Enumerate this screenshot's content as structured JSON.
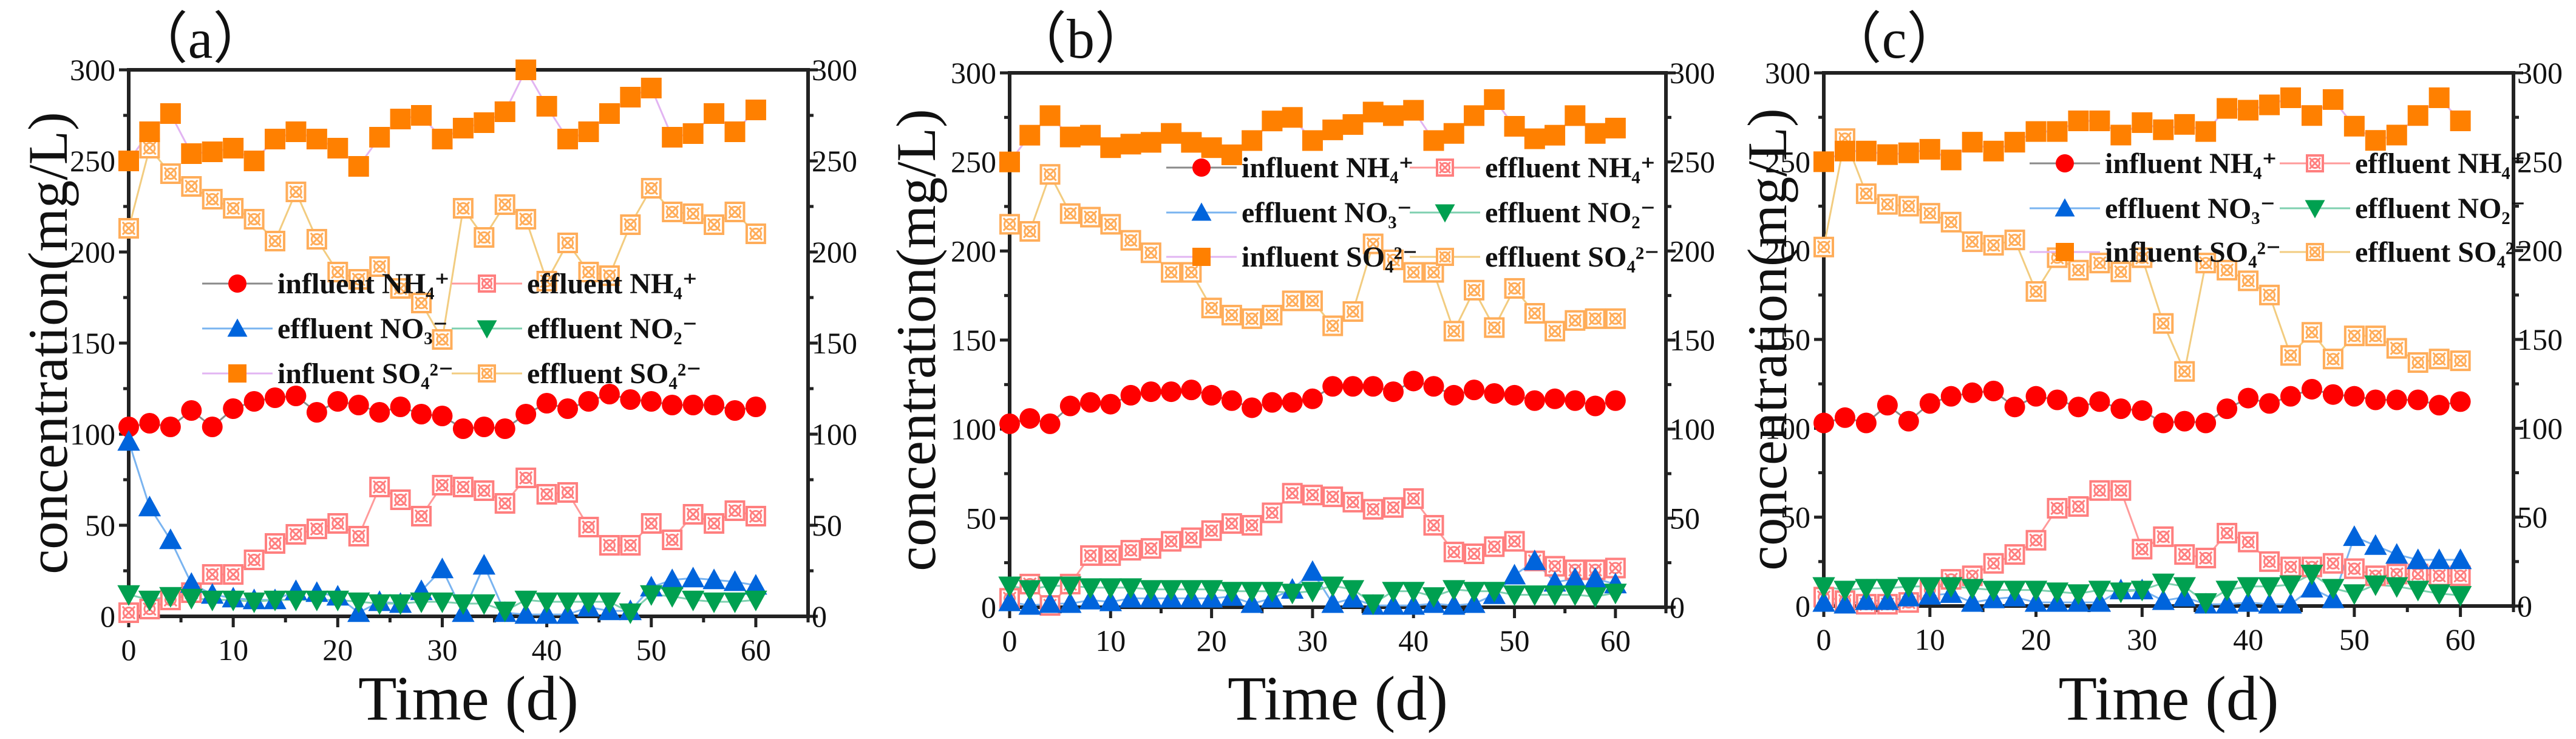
{
  "chart_data": [
    {
      "type": "line",
      "panel_label": "（a）",
      "xlabel": "Time (d)",
      "ylabel": "concentration(mg/L)",
      "xlim": [
        0,
        65
      ],
      "ylim": [
        0,
        300
      ],
      "xticks": [
        "0",
        "10",
        "20",
        "30",
        "40",
        "50",
        "60"
      ],
      "yticks": [
        "0",
        "50",
        "100",
        "150",
        "200",
        "250",
        "300"
      ],
      "right_axis_mirrored": true,
      "legend_placement": "center",
      "x": [
        0,
        2,
        4,
        6,
        8,
        10,
        12,
        14,
        16,
        18,
        20,
        22,
        24,
        26,
        28,
        30,
        32,
        34,
        36,
        38,
        40,
        42,
        44,
        46,
        48,
        50,
        52,
        54,
        56,
        58,
        60
      ],
      "series": [
        {
          "name": "influent NH₄⁺",
          "values": [
            104,
            106,
            104,
            113,
            104,
            114,
            118,
            120,
            121,
            112,
            118,
            116,
            112,
            115,
            111,
            110,
            103,
            104,
            103,
            111,
            117,
            114,
            118,
            122,
            119,
            118,
            116,
            116,
            116,
            113,
            115
          ]
        },
        {
          "name": "effluent NH₄⁺",
          "values": [
            2,
            4,
            9,
            13,
            23,
            23,
            31,
            40,
            45,
            48,
            51,
            44,
            71,
            64,
            55,
            72,
            71,
            69,
            62,
            76,
            67,
            68,
            49,
            39,
            39,
            51,
            42,
            56,
            51,
            58,
            55
          ]
        },
        {
          "name": "effluent NO₃⁻",
          "values": [
            96,
            60,
            42,
            18,
            12,
            10,
            9,
            9,
            14,
            13,
            11,
            2,
            8,
            7,
            14,
            26,
            2,
            28,
            2,
            1,
            1,
            1,
            5,
            3,
            3,
            16,
            20,
            21,
            20,
            19,
            17
          ]
        },
        {
          "name": "effluent NO₂⁻",
          "values": [
            12,
            9,
            11,
            10,
            9,
            9,
            8,
            9,
            9,
            9,
            9,
            8,
            7,
            7,
            8,
            8,
            7,
            7,
            3,
            9,
            8,
            8,
            8,
            8,
            2,
            12,
            11,
            9,
            8,
            8,
            9
          ]
        },
        {
          "name": "influent SO₄²⁻",
          "values": [
            250,
            266,
            276,
            254,
            255,
            257,
            250,
            262,
            266,
            262,
            257,
            247,
            263,
            273,
            275,
            262,
            268,
            271,
            277,
            300,
            280,
            262,
            266,
            276,
            285,
            290,
            263,
            265,
            276,
            266,
            278
          ]
        },
        {
          "name": "effluent SO₄²⁻",
          "values": [
            213,
            257,
            243,
            236,
            229,
            224,
            218,
            206,
            233,
            207,
            189,
            185,
            192,
            180,
            172,
            152,
            224,
            208,
            226,
            218,
            184,
            205,
            189,
            187,
            215,
            235,
            222,
            221,
            215,
            222,
            210
          ]
        }
      ]
    },
    {
      "type": "line",
      "panel_label": "（b）",
      "xlabel": "Time (d)",
      "ylabel": "concentration(mg/L)",
      "xlim": [
        0,
        65
      ],
      "ylim": [
        0,
        300
      ],
      "xticks": [
        "0",
        "10",
        "20",
        "30",
        "40",
        "50",
        "60"
      ],
      "yticks": [
        "0",
        "50",
        "100",
        "150",
        "200",
        "250",
        "300"
      ],
      "right_axis_mirrored": true,
      "legend_placement": "top-right",
      "x": [
        0,
        2,
        4,
        6,
        8,
        10,
        12,
        14,
        16,
        18,
        20,
        22,
        24,
        26,
        28,
        30,
        32,
        34,
        36,
        38,
        40,
        42,
        44,
        46,
        48,
        50,
        52,
        54,
        56,
        58,
        60
      ],
      "series": [
        {
          "name": "influent NH₄⁺",
          "values": [
            103,
            106,
            103,
            113,
            115,
            114,
            119,
            121,
            121,
            122,
            119,
            116,
            112,
            115,
            115,
            117,
            124,
            124,
            124,
            121,
            127,
            124,
            119,
            122,
            120,
            119,
            116,
            117,
            116,
            113,
            116
          ]
        },
        {
          "name": "effluent NH₄⁺",
          "values": [
            5,
            13,
            1,
            13,
            29,
            29,
            32,
            33,
            37,
            39,
            43,
            47,
            46,
            53,
            64,
            63,
            62,
            59,
            55,
            56,
            61,
            46,
            31,
            30,
            34,
            37,
            26,
            23,
            21,
            21,
            22
          ]
        },
        {
          "name": "effluent NO₃⁻",
          "values": [
            3,
            1,
            2,
            2,
            4,
            3,
            5,
            5,
            5,
            5,
            5,
            6,
            2,
            5,
            10,
            20,
            2,
            5,
            1,
            1,
            1,
            2,
            1,
            2,
            7,
            18,
            26,
            14,
            16,
            16,
            13
          ]
        },
        {
          "name": "effluent NO₂⁻",
          "values": [
            12,
            10,
            12,
            12,
            11,
            11,
            11,
            10,
            10,
            10,
            10,
            9,
            9,
            9,
            8,
            9,
            12,
            10,
            2,
            9,
            9,
            6,
            10,
            9,
            9,
            7,
            7,
            7,
            7,
            6,
            8
          ]
        },
        {
          "name": "influent SO₄²⁻",
          "values": [
            250,
            265,
            276,
            264,
            265,
            258,
            260,
            261,
            266,
            261,
            258,
            254,
            262,
            273,
            275,
            262,
            268,
            271,
            278,
            276,
            279,
            262,
            266,
            276,
            285,
            270,
            263,
            265,
            276,
            266,
            269
          ]
        },
        {
          "name": "effluent SO₄²⁻",
          "values": [
            215,
            211,
            243,
            221,
            219,
            215,
            206,
            199,
            188,
            188,
            168,
            164,
            162,
            164,
            172,
            172,
            158,
            166,
            204,
            195,
            188,
            188,
            155,
            178,
            157,
            179,
            165,
            155,
            161,
            162,
            162
          ]
        }
      ]
    },
    {
      "type": "line",
      "panel_label": "（c）",
      "xlabel": "Time (d)",
      "ylabel": "concentration(mg/L)",
      "xlim": [
        0,
        65
      ],
      "ylim": [
        0,
        300
      ],
      "xticks": [
        "0",
        "10",
        "20",
        "30",
        "40",
        "50",
        "60"
      ],
      "yticks": [
        "0",
        "50",
        "100",
        "150",
        "200",
        "250",
        "300"
      ],
      "right_axis_mirrored": true,
      "legend_placement": "top-right",
      "x": [
        0,
        2,
        4,
        6,
        8,
        10,
        12,
        14,
        16,
        18,
        20,
        22,
        24,
        26,
        28,
        30,
        32,
        34,
        36,
        38,
        40,
        42,
        44,
        46,
        48,
        50,
        52,
        54,
        56,
        58,
        60
      ],
      "series": [
        {
          "name": "influent NH₄⁺",
          "values": [
            103,
            106,
            103,
            113,
            104,
            114,
            118,
            120,
            121,
            112,
            118,
            116,
            112,
            115,
            111,
            110,
            103,
            104,
            103,
            111,
            117,
            114,
            118,
            122,
            119,
            118,
            116,
            116,
            116,
            113,
            115
          ]
        },
        {
          "name": "effluent NH₄⁺",
          "values": [
            5,
            3,
            1,
            1,
            2,
            9,
            15,
            17,
            24,
            29,
            37,
            55,
            56,
            65,
            65,
            32,
            39,
            29,
            27,
            41,
            36,
            25,
            22,
            22,
            24,
            21,
            17,
            18,
            18,
            17,
            17
          ]
        },
        {
          "name": "effluent NO₃⁻",
          "values": [
            2,
            1,
            3,
            3,
            5,
            6,
            7,
            2,
            4,
            5,
            2,
            2,
            2,
            2,
            9,
            9,
            3,
            5,
            1,
            1,
            2,
            1,
            1,
            10,
            4,
            39,
            34,
            29,
            26,
            26,
            26
          ]
        },
        {
          "name": "effluent NO₂⁻",
          "values": [
            11,
            9,
            10,
            10,
            11,
            11,
            11,
            10,
            9,
            9,
            9,
            8,
            7,
            9,
            8,
            9,
            13,
            11,
            2,
            9,
            11,
            11,
            12,
            18,
            10,
            7,
            12,
            11,
            9,
            7,
            6
          ]
        },
        {
          "name": "influent SO₄²⁻",
          "values": [
            250,
            256,
            256,
            254,
            255,
            257,
            251,
            261,
            256,
            261,
            267,
            267,
            273,
            273,
            265,
            272,
            268,
            271,
            267,
            280,
            279,
            282,
            286,
            276,
            285,
            270,
            262,
            265,
            276,
            286,
            273
          ]
        },
        {
          "name": "effluent SO₄²⁻",
          "values": [
            202,
            263,
            232,
            226,
            225,
            221,
            216,
            205,
            203,
            206,
            177,
            196,
            189,
            193,
            188,
            196,
            159,
            132,
            193,
            189,
            183,
            175,
            141,
            154,
            139,
            152,
            152,
            145,
            137,
            139,
            138
          ]
        }
      ]
    }
  ],
  "series_style": [
    {
      "marker": "circle",
      "color": "#ff0000",
      "line": "#8a8a8a"
    },
    {
      "marker": "crossed-square-open",
      "color": "#ff7f7f",
      "line": "#ff9a9a"
    },
    {
      "marker": "triangle-up",
      "color": "#0064dc",
      "line": "#7ab4f0"
    },
    {
      "marker": "triangle-down",
      "color": "#00a050",
      "line": "#7fd0b0"
    },
    {
      "marker": "square",
      "color": "#ff8000",
      "line": "#e2b4f2"
    },
    {
      "marker": "crossed-square-open",
      "color": "#ffad5a",
      "line": "#f2cc80"
    }
  ]
}
